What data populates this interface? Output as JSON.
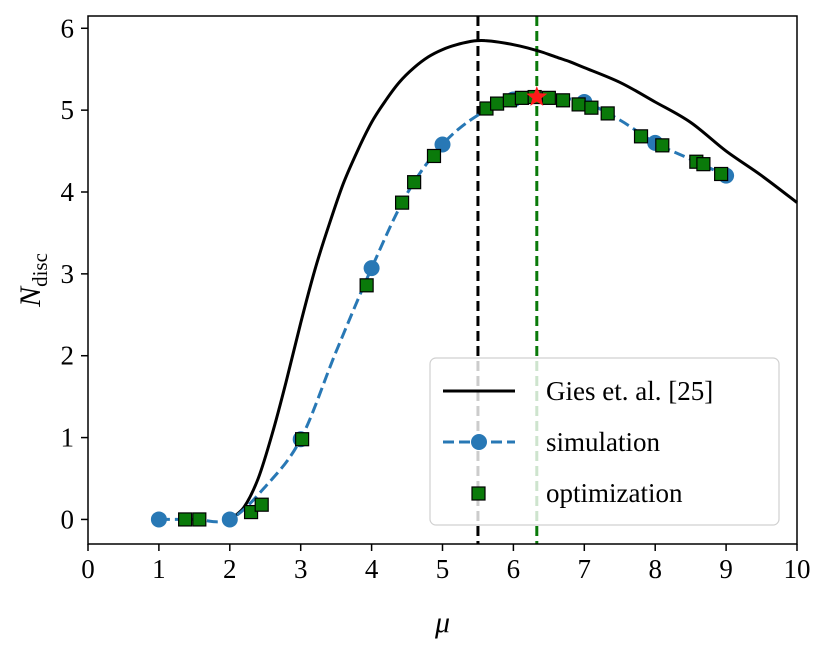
{
  "chart_data": {
    "type": "line",
    "xlabel": "μ",
    "ylabel": {
      "main": "N",
      "sub": "disc"
    },
    "xlim": [
      0,
      10
    ],
    "ylim": [
      -0.3,
      6.15
    ],
    "xticks": [
      0,
      1,
      2,
      3,
      4,
      5,
      6,
      7,
      8,
      9,
      10
    ],
    "yticks": [
      0,
      1,
      2,
      3,
      4,
      5,
      6
    ],
    "grid": false,
    "legend_position": "lower-right",
    "series": [
      {
        "name": "Gies et. al. [25]",
        "style": "solid-line",
        "color": "#000000",
        "x": [
          2.0,
          2.2,
          2.4,
          2.6,
          2.8,
          3.0,
          3.2,
          3.4,
          3.6,
          3.8,
          4.0,
          4.2,
          4.4,
          4.6,
          4.8,
          5.0,
          5.2,
          5.4,
          5.5,
          5.6,
          5.8,
          6.0,
          6.2,
          6.4,
          6.6,
          6.8,
          7.0,
          7.5,
          8.0,
          8.5,
          9.0,
          9.5,
          10.0
        ],
        "y": [
          0.0,
          0.15,
          0.5,
          1.05,
          1.7,
          2.4,
          3.05,
          3.6,
          4.1,
          4.5,
          4.85,
          5.12,
          5.35,
          5.52,
          5.65,
          5.74,
          5.8,
          5.84,
          5.85,
          5.85,
          5.83,
          5.8,
          5.76,
          5.71,
          5.65,
          5.59,
          5.52,
          5.34,
          5.1,
          4.85,
          4.5,
          4.2,
          3.87
        ]
      },
      {
        "name": "simulation",
        "style": "dashed-line-circles",
        "color": "#2878b5",
        "x": [
          1,
          2,
          3,
          4,
          5,
          6,
          7,
          8,
          9
        ],
        "y": [
          0.0,
          0.0,
          0.98,
          3.07,
          4.58,
          5.13,
          5.1,
          4.6,
          4.2
        ],
        "curve_x": [
          1.0,
          1.5,
          2.0,
          2.5,
          3.0,
          3.5,
          4.0,
          4.5,
          5.0,
          5.5,
          6.0,
          6.3,
          6.6,
          7.0,
          7.5,
          8.0,
          8.5,
          9.0
        ],
        "curve_y": [
          0.0,
          0.0,
          0.0,
          0.4,
          0.98,
          2.05,
          3.07,
          3.98,
          4.58,
          4.94,
          5.13,
          5.17,
          5.15,
          5.1,
          4.88,
          4.6,
          4.4,
          4.2
        ]
      },
      {
        "name": "optimization",
        "style": "green-squares",
        "color": "#0a7a0a",
        "x": [
          1.37,
          1.57,
          2.3,
          2.45,
          3.02,
          3.93,
          4.43,
          4.6,
          4.88,
          5.62,
          5.77,
          5.95,
          6.12,
          6.3,
          6.5,
          6.7,
          6.92,
          7.1,
          7.33,
          7.8,
          8.1,
          8.58,
          8.68,
          8.93
        ],
        "y": [
          0.0,
          0.0,
          0.09,
          0.18,
          0.98,
          2.86,
          3.87,
          4.12,
          4.44,
          5.02,
          5.08,
          5.12,
          5.15,
          5.16,
          5.15,
          5.12,
          5.07,
          5.03,
          4.96,
          4.68,
          4.57,
          4.37,
          4.34,
          4.22
        ]
      }
    ],
    "vlines": [
      {
        "x": 5.5,
        "color": "#000000",
        "style": "dashed"
      },
      {
        "x": 6.33,
        "color": "#0a7a0a",
        "style": "dashed"
      }
    ],
    "marker_star": {
      "x": 6.33,
      "y": 5.16,
      "color": "#ff1a1a"
    }
  }
}
